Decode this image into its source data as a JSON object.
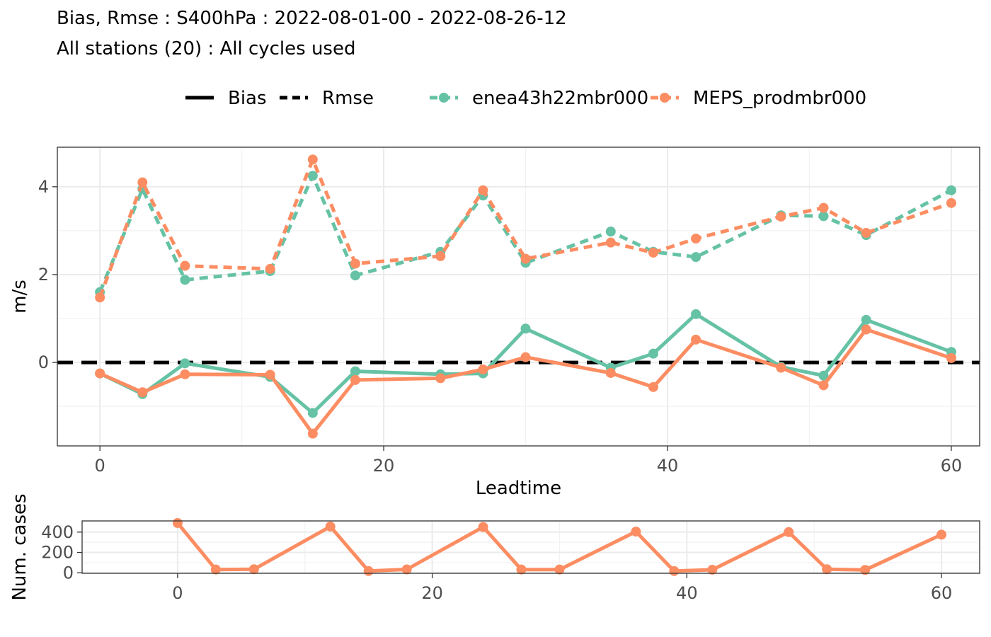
{
  "title": "Bias, Rmse : S400hPa : 2022-08-01-00 - 2022-08-26-12",
  "subtitle": "All stations (20) : All cycles used",
  "legend": {
    "linetypes": [
      "Bias",
      "Rmse"
    ],
    "models": [
      "enea43h22mbr000",
      "MEPS_prodmbr000"
    ]
  },
  "colors": {
    "enea43h22mbr000": "#66c2a5",
    "MEPS_prodmbr000": "#fc8d62",
    "zero_line": "#000000",
    "grid": "#ebebeb",
    "panel_border": "#333333"
  },
  "chart_data": [
    {
      "type": "line",
      "xlabel": "Leadtime",
      "ylabel": "m/s",
      "xlim": [
        -3,
        62
      ],
      "ylim": [
        -1.9,
        4.9
      ],
      "x_ticks": [
        0,
        20,
        40,
        60
      ],
      "y_ticks": [
        0,
        2,
        4
      ],
      "x_minor_ticks": [
        10,
        30,
        50
      ],
      "y_minor_ticks": [
        -1,
        1,
        3
      ],
      "grid": true,
      "legend_position": "top",
      "hline": 0,
      "series": [
        {
          "name": "enea43h22mbr000",
          "score": "Bias",
          "linetype": "solid",
          "x": [
            0,
            3,
            6,
            12,
            15,
            18,
            24,
            27,
            30,
            36,
            39,
            42,
            48,
            51,
            54,
            60
          ],
          "values": [
            -0.25,
            -0.72,
            -0.02,
            -0.33,
            -1.15,
            -0.2,
            -0.27,
            -0.25,
            0.77,
            -0.12,
            0.2,
            1.1,
            -0.1,
            -0.3,
            0.97,
            0.24
          ]
        },
        {
          "name": "MEPS_prodmbr000",
          "score": "Bias",
          "linetype": "solid",
          "x": [
            0,
            3,
            6,
            12,
            15,
            18,
            24,
            27,
            30,
            36,
            39,
            42,
            48,
            51,
            54,
            60
          ],
          "values": [
            -0.25,
            -0.68,
            -0.27,
            -0.28,
            -1.62,
            -0.4,
            -0.36,
            -0.16,
            0.12,
            -0.24,
            -0.56,
            0.52,
            -0.12,
            -0.52,
            0.75,
            0.1
          ]
        },
        {
          "name": "enea43h22mbr000",
          "score": "Rmse",
          "linetype": "dashed",
          "x": [
            0,
            3,
            6,
            12,
            15,
            18,
            24,
            27,
            30,
            36,
            39,
            42,
            48,
            51,
            54,
            60
          ],
          "values": [
            1.6,
            3.95,
            1.88,
            2.08,
            4.25,
            1.98,
            2.52,
            3.8,
            2.27,
            2.98,
            2.52,
            2.4,
            3.35,
            3.33,
            2.9,
            3.92
          ]
        },
        {
          "name": "MEPS_prodmbr000",
          "score": "Rmse",
          "linetype": "dashed",
          "x": [
            0,
            3,
            6,
            12,
            15,
            18,
            24,
            27,
            30,
            36,
            39,
            42,
            48,
            51,
            54,
            60
          ],
          "values": [
            1.48,
            4.1,
            2.2,
            2.13,
            4.62,
            2.25,
            2.42,
            3.92,
            2.36,
            2.73,
            2.5,
            2.82,
            3.32,
            3.52,
            2.95,
            3.63
          ]
        }
      ]
    },
    {
      "type": "line",
      "xlabel": "",
      "ylabel": "Num. cases",
      "xlim": [
        -7.5,
        63
      ],
      "ylim": [
        -5,
        510
      ],
      "x_ticks": [
        0,
        20,
        40,
        60
      ],
      "y_ticks": [
        0,
        200,
        400
      ],
      "x_minor_ticks": [
        10,
        30,
        50
      ],
      "y_minor_ticks": [
        100,
        300,
        500
      ],
      "grid": true,
      "series": [
        {
          "name": "MEPS_prodmbr000",
          "linetype": "solid",
          "x": [
            0,
            3,
            6,
            12,
            15,
            18,
            24,
            27,
            30,
            36,
            39,
            42,
            48,
            51,
            54,
            60
          ],
          "values": [
            490,
            32,
            35,
            455,
            17,
            33,
            450,
            32,
            32,
            405,
            17,
            30,
            400,
            35,
            28,
            375
          ]
        }
      ]
    }
  ]
}
